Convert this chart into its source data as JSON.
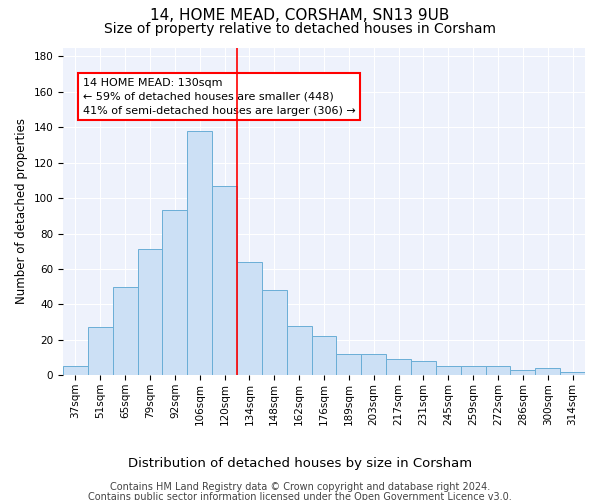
{
  "title": "14, HOME MEAD, CORSHAM, SN13 9UB",
  "subtitle": "Size of property relative to detached houses in Corsham",
  "xlabel": "Distribution of detached houses by size in Corsham",
  "ylabel": "Number of detached properties",
  "categories": [
    "37sqm",
    "51sqm",
    "65sqm",
    "79sqm",
    "92sqm",
    "106sqm",
    "120sqm",
    "134sqm",
    "148sqm",
    "162sqm",
    "176sqm",
    "189sqm",
    "203sqm",
    "217sqm",
    "231sqm",
    "245sqm",
    "259sqm",
    "272sqm",
    "286sqm",
    "300sqm",
    "314sqm"
  ],
  "values": [
    5,
    27,
    50,
    71,
    93,
    138,
    107,
    64,
    48,
    28,
    22,
    12,
    12,
    9,
    8,
    5,
    5,
    5,
    3,
    4,
    2
  ],
  "bar_color": "#cce0f5",
  "bar_edge_color": "#6aaed6",
  "vline_color": "red",
  "vline_x": 6.5,
  "annotation_text": "14 HOME MEAD: 130sqm\n← 59% of detached houses are smaller (448)\n41% of semi-detached houses are larger (306) →",
  "annotation_box_color": "white",
  "annotation_box_edge": "red",
  "ylim": [
    0,
    185
  ],
  "yticks": [
    0,
    20,
    40,
    60,
    80,
    100,
    120,
    140,
    160,
    180
  ],
  "footer_line1": "Contains HM Land Registry data © Crown copyright and database right 2024.",
  "footer_line2": "Contains public sector information licensed under the Open Government Licence v3.0.",
  "title_fontsize": 11,
  "subtitle_fontsize": 10,
  "xlabel_fontsize": 9.5,
  "ylabel_fontsize": 8.5,
  "tick_fontsize": 7.5,
  "annotation_fontsize": 8,
  "footer_fontsize": 7,
  "background_color": "#eef2fc"
}
